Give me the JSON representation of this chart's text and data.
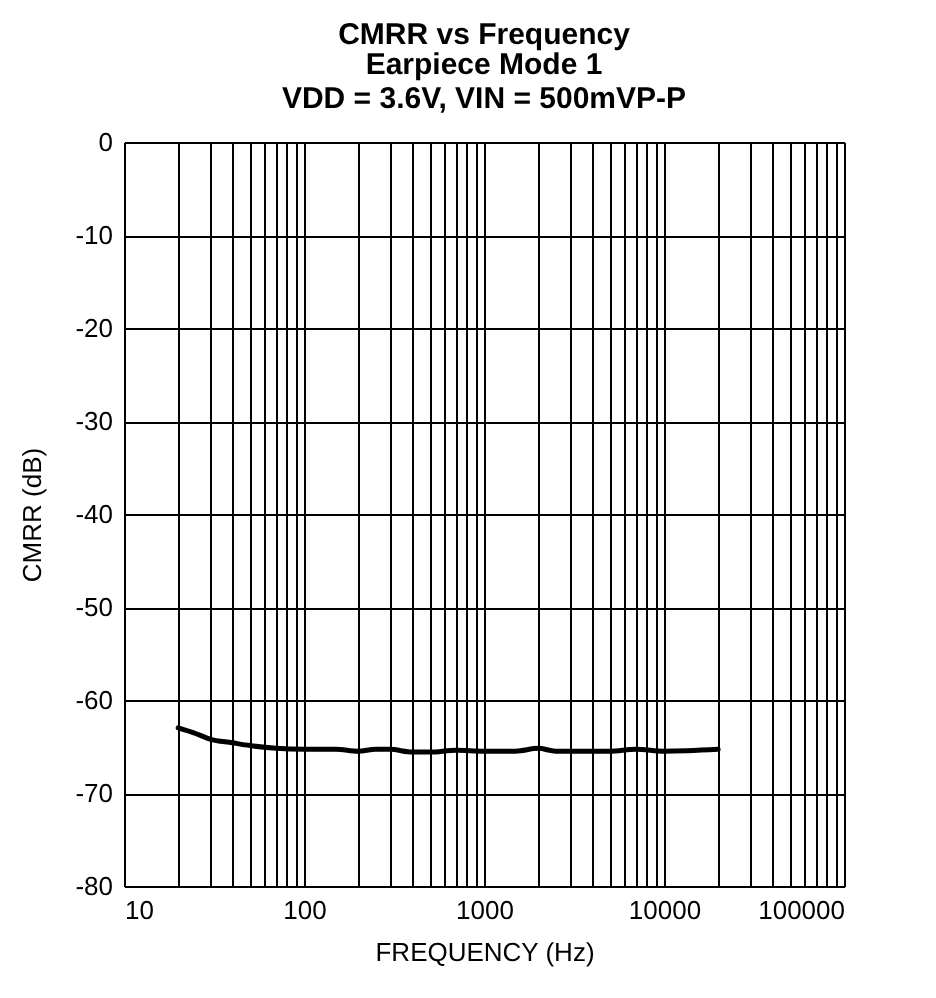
{
  "chart_data": {
    "type": "line",
    "title": "CMRR vs Frequency",
    "subtitle": "Earpiece Mode 1\nVDD = 3.6V, VIN = 500mVP-P",
    "xlabel": "FREQUENCY (Hz)",
    "ylabel": "CMRR (dB)",
    "series": [
      {
        "color": "#000000",
        "x": [
          20,
          25,
          30,
          40,
          50,
          70,
          100,
          150,
          200,
          250,
          300,
          400,
          500,
          700,
          1000,
          1500,
          2000,
          2500,
          5000,
          7000,
          10000,
          20000
        ],
        "values": [
          -63.0,
          -63.6,
          -64.2,
          -64.6,
          -64.9,
          -65.2,
          -65.3,
          -65.3,
          -65.5,
          -65.3,
          -65.3,
          -65.6,
          -65.6,
          -65.4,
          -65.5,
          -65.5,
          -65.2,
          -65.5,
          -65.5,
          -65.3,
          -65.5,
          -65.3
        ]
      }
    ],
    "log": "x",
    "xlim": [
      10,
      100000
    ],
    "ylim": [
      -80,
      0
    ],
    "xticks": [
      10,
      {
        "value": 20,
        "label": null
      },
      {
        "value": 30,
        "label": null
      },
      {
        "value": 40,
        "label": null
      },
      {
        "value": 50,
        "label": null
      },
      {
        "value": 60,
        "label": null
      },
      {
        "value": 70,
        "label": null
      },
      {
        "value": 80,
        "label": null
      },
      {
        "value": 90,
        "label": null
      },
      100,
      {
        "value": 200,
        "label": null
      },
      {
        "value": 300,
        "label": null
      },
      {
        "value": 400,
        "label": null
      },
      {
        "value": 500,
        "label": null
      },
      {
        "value": 600,
        "label": null
      },
      {
        "value": 700,
        "label": null
      },
      {
        "value": 800,
        "label": null
      },
      {
        "value": 900,
        "label": null
      },
      1000,
      {
        "value": 2000,
        "label": null
      },
      {
        "value": 3000,
        "label": null
      },
      {
        "value": 4000,
        "label": null
      },
      {
        "value": 5000,
        "label": null
      },
      {
        "value": 6000,
        "label": null
      },
      {
        "value": 7000,
        "label": null
      },
      {
        "value": 8000,
        "label": null
      },
      {
        "value": 9000,
        "label": null
      },
      10000,
      {
        "value": 20000,
        "label": null
      },
      {
        "value": 30000,
        "label": null
      },
      {
        "value": 40000,
        "label": null
      },
      {
        "value": 50000,
        "label": null
      },
      {
        "value": 60000,
        "label": null
      },
      {
        "value": 70000,
        "label": null
      },
      {
        "value": 80000,
        "label": null
      },
      {
        "value": 90000,
        "label": null
      },
      100000
    ],
    "yticks": [
      -80,
      -70,
      -60,
      -50,
      -40,
      -30,
      -20,
      -10,
      0
    ],
    "grid": true,
    "marker": "none",
    "line_style": "solid"
  }
}
